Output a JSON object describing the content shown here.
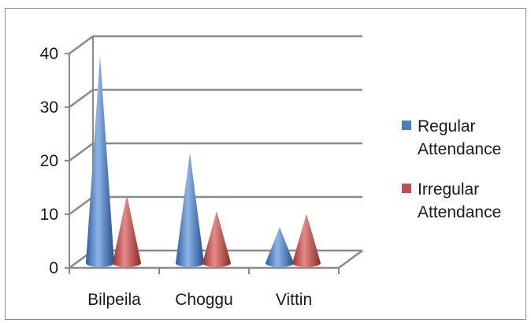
{
  "chart_data": {
    "type": "bar",
    "style": "3d-cone",
    "categories": [
      "Bilpeila",
      "Choggu",
      "Vittin"
    ],
    "series": [
      {
        "name": "Regular Attendance",
        "color": "#4a7fc4",
        "values": [
          39,
          21,
          7
        ]
      },
      {
        "name": "Irregular Attendance",
        "color": "#c0504d",
        "values": [
          13,
          10,
          9.5
        ]
      }
    ],
    "yticks": [
      0,
      10,
      20,
      30,
      40
    ],
    "ylim": [
      0,
      40
    ],
    "grid": true,
    "legend_position": "right",
    "title": "",
    "xlabel": "",
    "ylabel": ""
  }
}
